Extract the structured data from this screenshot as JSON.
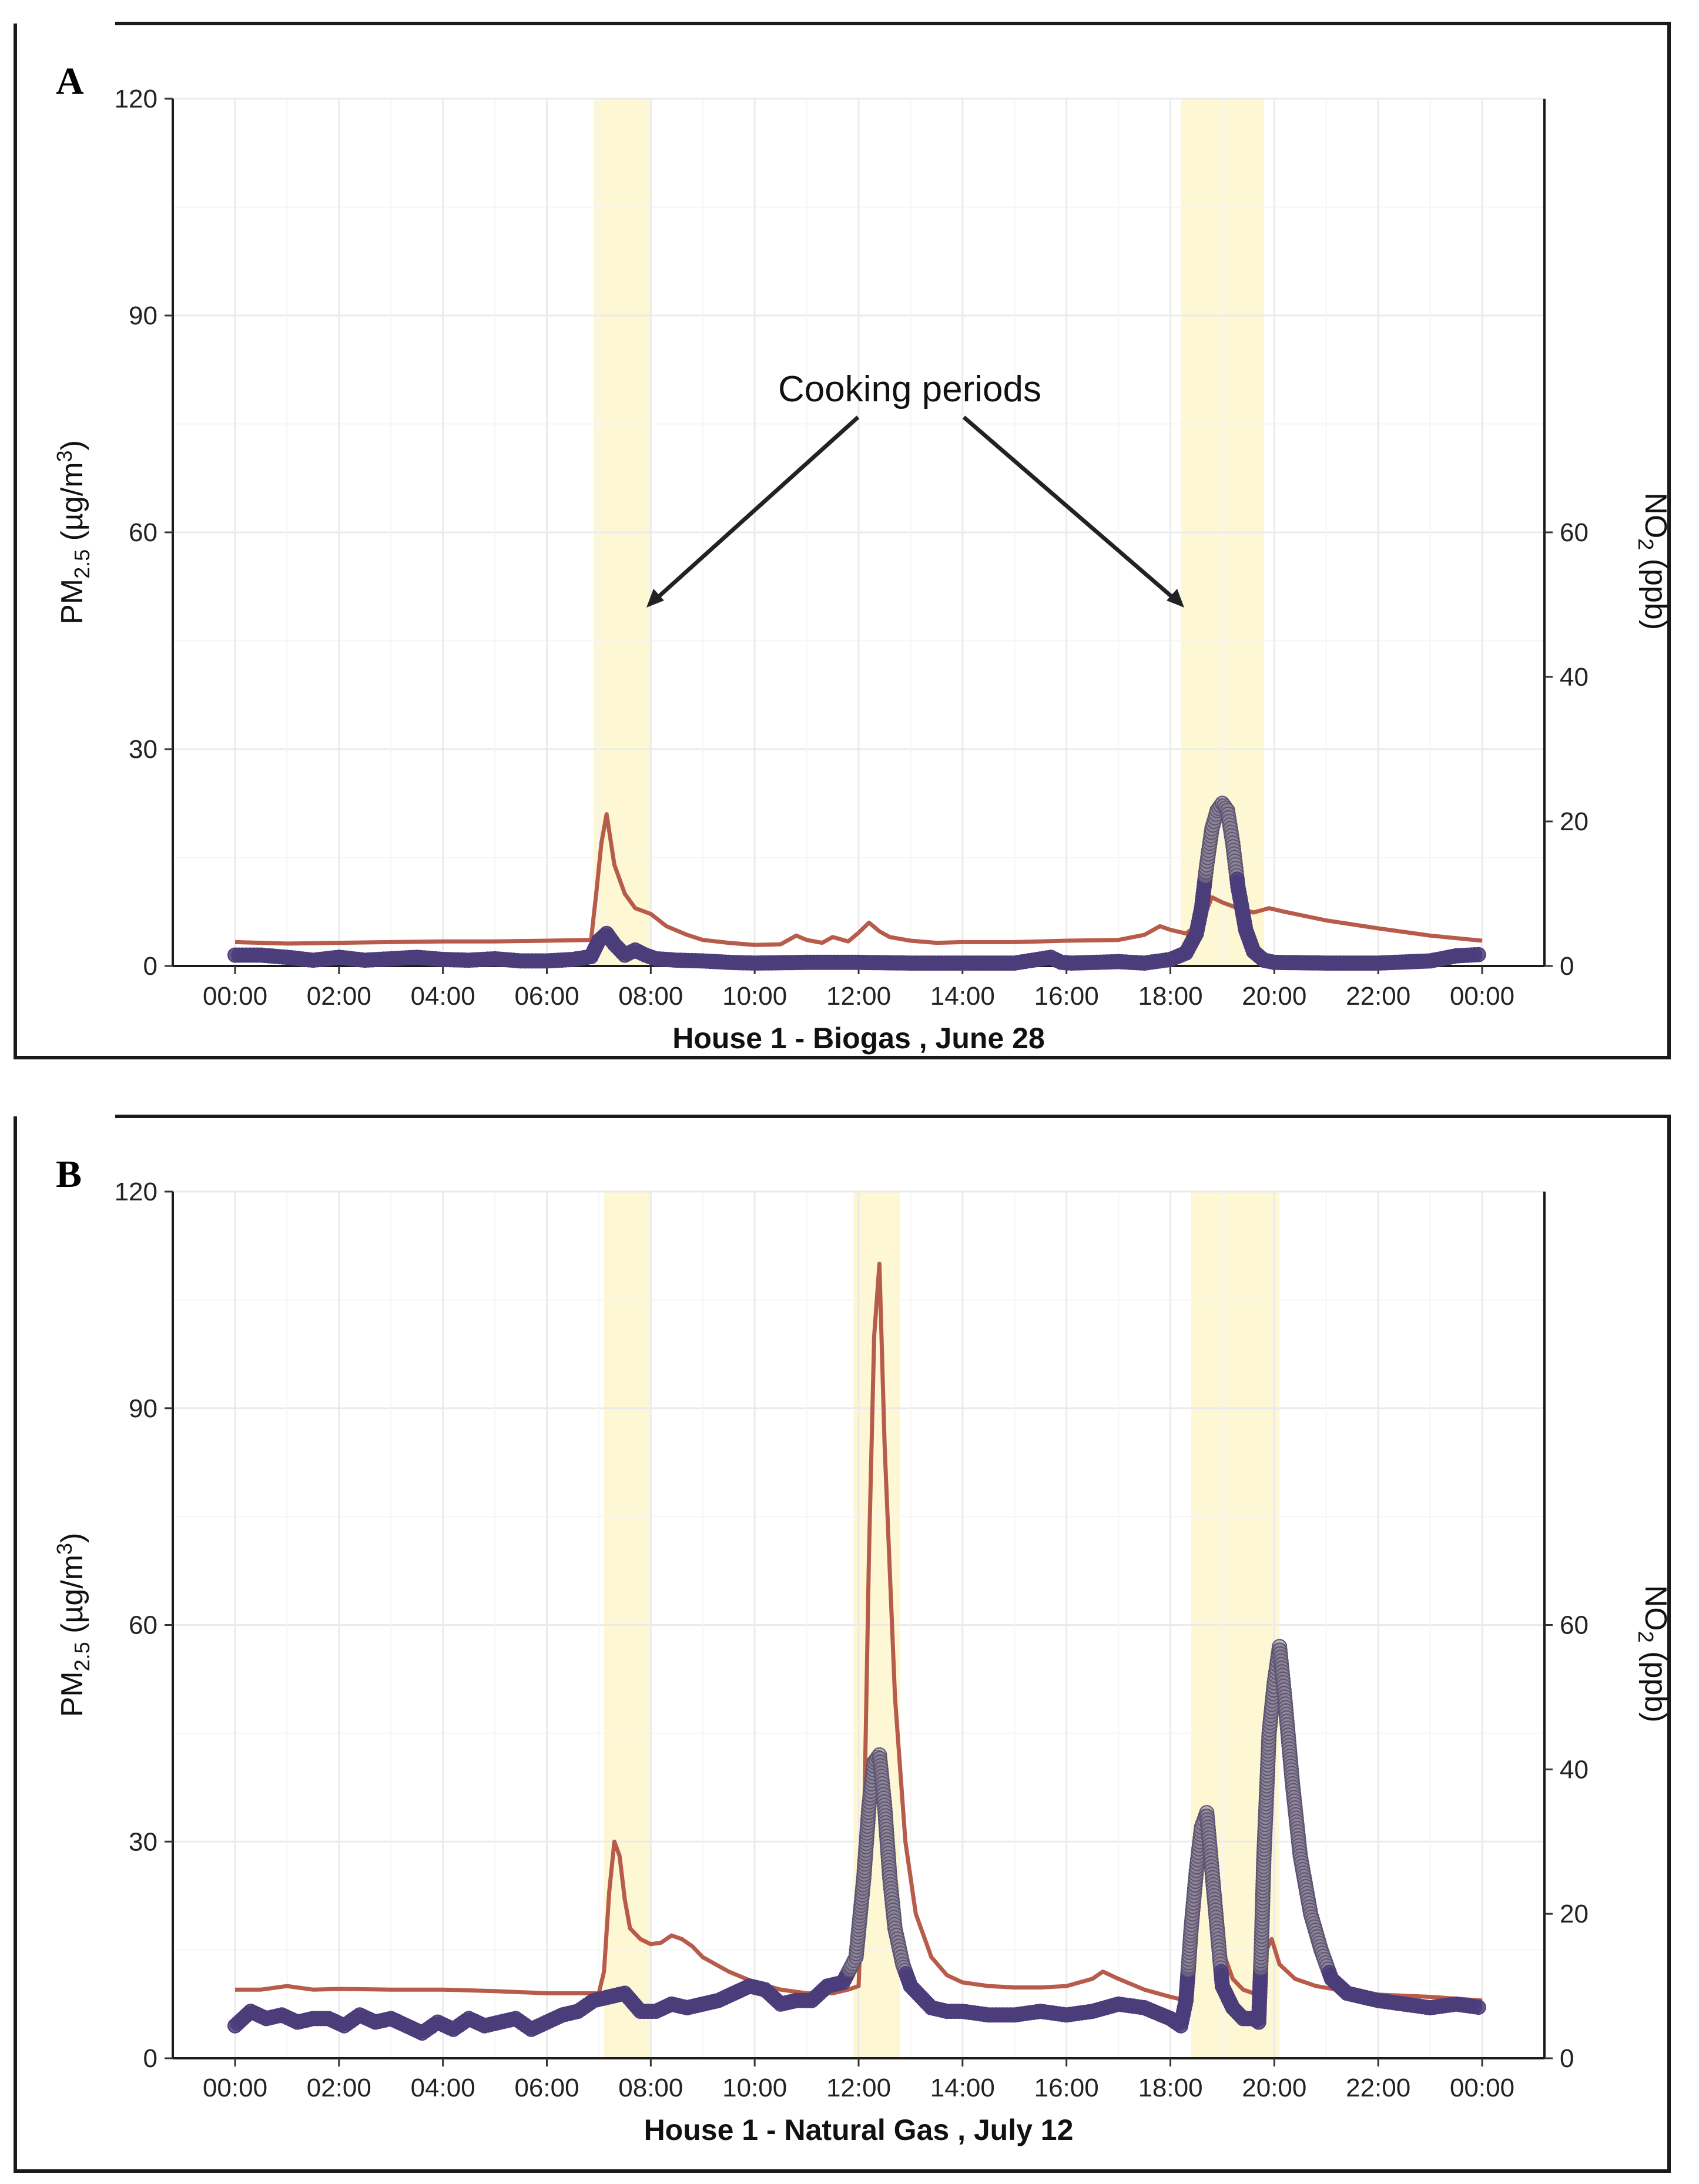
{
  "chart_data": [
    {
      "panel": "A",
      "type": "line",
      "title": "",
      "xlabel": "House 1 - Biogas , June 28",
      "ylabel": "PM2.5 (µg/m3)",
      "ylabel_base": "PM",
      "ylabel_sub": "2.5",
      "ylabel_unit": "(µg/m",
      "ylabel_sup": "3",
      "ylabel_close": ")",
      "y2label": "NO2 (ppb)",
      "y2label_base": "NO",
      "y2label_sub": "2",
      "y2label_unit": "(ppb)",
      "ylim": [
        0,
        120
      ],
      "yticks": [
        "0",
        "30",
        "60",
        "90",
        "120"
      ],
      "y2lim": [
        0,
        120
      ],
      "y2ticks": [
        "0",
        "20",
        "40",
        "60"
      ],
      "xlim": [
        0,
        24
      ],
      "xticks": [
        "00:00",
        "02:00",
        "04:00",
        "06:00",
        "08:00",
        "10:00",
        "12:00",
        "14:00",
        "16:00",
        "18:00",
        "20:00",
        "22:00",
        "00:00"
      ],
      "cooking_periods": [
        [
          6.9,
          8.0
        ],
        [
          18.2,
          19.8
        ]
      ],
      "annotation": "Cooking periods",
      "series": [
        {
          "name": "PM2.5",
          "color": "#b75b4a",
          "axis": "left",
          "x": [
            0,
            1,
            2,
            3,
            4,
            5,
            6,
            6.85,
            6.95,
            7.05,
            7.15,
            7.3,
            7.5,
            7.7,
            8.0,
            8.3,
            8.7,
            9.0,
            9.5,
            10.0,
            10.5,
            10.8,
            11.0,
            11.3,
            11.5,
            11.8,
            12.0,
            12.2,
            12.4,
            12.6,
            13.0,
            13.5,
            14.0,
            15.0,
            16.0,
            17.0,
            17.5,
            17.8,
            18.0,
            18.3,
            18.6,
            18.8,
            19.0,
            19.3,
            19.6,
            19.9,
            20.2,
            21.0,
            22.0,
            23.0,
            24.0
          ],
          "y": [
            3.3,
            3.1,
            3.2,
            3.3,
            3.4,
            3.4,
            3.5,
            3.6,
            10,
            17,
            21,
            14,
            10,
            8,
            7.2,
            5.5,
            4.3,
            3.6,
            3.2,
            2.9,
            3.0,
            4.2,
            3.6,
            3.2,
            4.0,
            3.4,
            4.6,
            6.0,
            4.8,
            4.0,
            3.5,
            3.2,
            3.3,
            3.3,
            3.5,
            3.6,
            4.3,
            5.5,
            5.0,
            4.5,
            6.0,
            9.5,
            8.8,
            8.0,
            7.4,
            8.0,
            7.5,
            6.3,
            5.2,
            4.2,
            3.5
          ]
        },
        {
          "name": "NO2",
          "color": "#4b3d7a",
          "axis": "right",
          "x": [
            0,
            0.5,
            1,
            1.5,
            2,
            2.5,
            3,
            3.5,
            4,
            4.5,
            5,
            5.5,
            6,
            6.5,
            6.85,
            7.0,
            7.15,
            7.3,
            7.5,
            7.7,
            7.9,
            8.1,
            8.5,
            9,
            9.5,
            10,
            11,
            12,
            13,
            14,
            15,
            15.7,
            15.9,
            16.1,
            17,
            17.5,
            18,
            18.3,
            18.5,
            18.6,
            18.7,
            18.8,
            18.9,
            19.0,
            19.1,
            19.2,
            19.3,
            19.45,
            19.6,
            19.8,
            20.0,
            21,
            22,
            23,
            23.5,
            24
          ],
          "y": [
            1.5,
            1.5,
            1.2,
            0.8,
            1.2,
            0.8,
            1.0,
            1.2,
            0.9,
            0.8,
            1.0,
            0.7,
            0.7,
            0.9,
            1.3,
            3.5,
            4.5,
            3.0,
            1.5,
            2.2,
            1.5,
            1.0,
            0.8,
            0.7,
            0.5,
            0.4,
            0.5,
            0.5,
            0.4,
            0.4,
            0.4,
            1.2,
            0.5,
            0.4,
            0.6,
            0.4,
            0.9,
            1.8,
            4.5,
            8,
            14,
            19,
            21.5,
            22.5,
            21.5,
            17,
            11,
            5,
            2,
            0.8,
            0.5,
            0.4,
            0.4,
            0.7,
            1.4,
            1.6
          ]
        }
      ]
    },
    {
      "panel": "B",
      "type": "line",
      "title": "",
      "xlabel": "House 1 - Natural Gas , July 12",
      "ylabel": "PM2.5 (µg/m3)",
      "ylabel_base": "PM",
      "ylabel_sub": "2.5",
      "ylabel_unit": "(µg/m",
      "ylabel_sup": "3",
      "ylabel_close": ")",
      "y2label": "NO2 (ppb)",
      "y2label_base": "NO",
      "y2label_sub": "2",
      "y2label_unit": "(ppb)",
      "ylim": [
        0,
        120
      ],
      "yticks": [
        "0",
        "30",
        "60",
        "90",
        "120"
      ],
      "y2lim": [
        0,
        120
      ],
      "y2ticks": [
        "0",
        "20",
        "40",
        "60"
      ],
      "xlim": [
        0,
        24
      ],
      "xticks": [
        "00:00",
        "02:00",
        "04:00",
        "06:00",
        "08:00",
        "10:00",
        "12:00",
        "14:00",
        "16:00",
        "18:00",
        "20:00",
        "22:00",
        "00:00"
      ],
      "cooking_periods": [
        [
          7.1,
          8.0
        ],
        [
          11.9,
          12.8
        ],
        [
          18.4,
          20.1
        ]
      ],
      "annotation": "",
      "series": [
        {
          "name": "PM2.5",
          "color": "#b75b4a",
          "axis": "left",
          "x": [
            0,
            0.5,
            1,
            1.5,
            2,
            3,
            4,
            5,
            6,
            7.0,
            7.1,
            7.2,
            7.3,
            7.4,
            7.5,
            7.6,
            7.8,
            8.0,
            8.2,
            8.4,
            8.6,
            8.8,
            9.0,
            9.5,
            10.0,
            10.5,
            11.0,
            11.5,
            11.8,
            12.0,
            12.1,
            12.2,
            12.3,
            12.4,
            12.5,
            12.7,
            12.9,
            13.1,
            13.4,
            13.7,
            14.0,
            14.5,
            15.0,
            15.5,
            16.0,
            16.5,
            16.7,
            17.0,
            17.5,
            18.0,
            18.3,
            18.45,
            18.55,
            18.65,
            18.75,
            18.85,
            19.0,
            19.2,
            19.4,
            19.6,
            19.75,
            19.85,
            19.95,
            20.1,
            20.4,
            20.8,
            21.2,
            22,
            23,
            24
          ],
          "y": [
            9.5,
            9.5,
            10.0,
            9.5,
            9.6,
            9.5,
            9.5,
            9.3,
            9.0,
            9.0,
            12,
            23,
            30,
            28,
            22,
            18,
            16.5,
            15.8,
            16.0,
            17.0,
            16.5,
            15.5,
            14.0,
            12.0,
            10.5,
            9.5,
            9.0,
            9.0,
            9.5,
            10,
            30,
            70,
            100,
            110,
            85,
            50,
            30,
            20,
            14,
            11.5,
            10.5,
            10.0,
            9.8,
            9.8,
            10.0,
            11.0,
            12.0,
            11.0,
            9.5,
            8.5,
            8.0,
            12,
            25,
            30,
            28,
            22,
            15,
            11,
            9.5,
            9.0,
            11,
            15,
            16.5,
            13,
            11,
            10.0,
            9.5,
            8.8,
            8.5,
            8.0
          ]
        },
        {
          "name": "NO2",
          "color": "#4b3d7a",
          "axis": "right",
          "x": [
            0,
            0.3,
            0.6,
            0.9,
            1.2,
            1.5,
            1.8,
            2.1,
            2.4,
            2.7,
            3.0,
            3.3,
            3.6,
            3.9,
            4.2,
            4.5,
            4.8,
            5.1,
            5.4,
            5.7,
            6.0,
            6.3,
            6.6,
            6.9,
            7.2,
            7.5,
            7.8,
            8.1,
            8.4,
            8.7,
            9.0,
            9.3,
            9.6,
            9.9,
            10.2,
            10.5,
            10.8,
            11.1,
            11.4,
            11.7,
            11.95,
            12.1,
            12.2,
            12.3,
            12.4,
            12.5,
            12.6,
            12.7,
            12.85,
            13.0,
            13.2,
            13.4,
            13.7,
            14.0,
            14.5,
            15.0,
            15.5,
            16.0,
            16.5,
            17.0,
            17.5,
            18.0,
            18.2,
            18.3,
            18.4,
            18.5,
            18.6,
            18.7,
            18.8,
            18.9,
            19.0,
            19.2,
            19.4,
            19.6,
            19.7,
            19.75,
            19.8,
            19.9,
            20.0,
            20.1,
            20.2,
            20.35,
            20.5,
            20.7,
            20.9,
            21.1,
            21.4,
            21.7,
            22,
            22.5,
            23,
            23.5,
            24
          ],
          "y": [
            4.5,
            6.5,
            5.5,
            6.0,
            5.0,
            5.5,
            5.5,
            4.5,
            6.0,
            5.0,
            5.5,
            4.5,
            3.5,
            5.0,
            4.0,
            5.5,
            4.5,
            5.0,
            5.5,
            4.0,
            5.0,
            6.0,
            6.5,
            8.0,
            8.5,
            9.0,
            6.5,
            6.5,
            7.5,
            7.0,
            7.5,
            8.0,
            9.0,
            10.0,
            9.5,
            7.5,
            8.0,
            8.0,
            10.0,
            10.5,
            14,
            25,
            35,
            41,
            42,
            35,
            25,
            18,
            13,
            10,
            8.5,
            7.0,
            6.5,
            6.5,
            6.0,
            6.0,
            6.5,
            6.0,
            6.5,
            7.5,
            7.0,
            5.5,
            4.5,
            8.0,
            18,
            26,
            32,
            34,
            26,
            18,
            10,
            7,
            5.5,
            5.5,
            5.0,
            15,
            28,
            45,
            52,
            57,
            50,
            38,
            28,
            20,
            15,
            11,
            9,
            8.5,
            8.0,
            7.5,
            7.0,
            7.5,
            7.0
          ]
        }
      ]
    }
  ]
}
